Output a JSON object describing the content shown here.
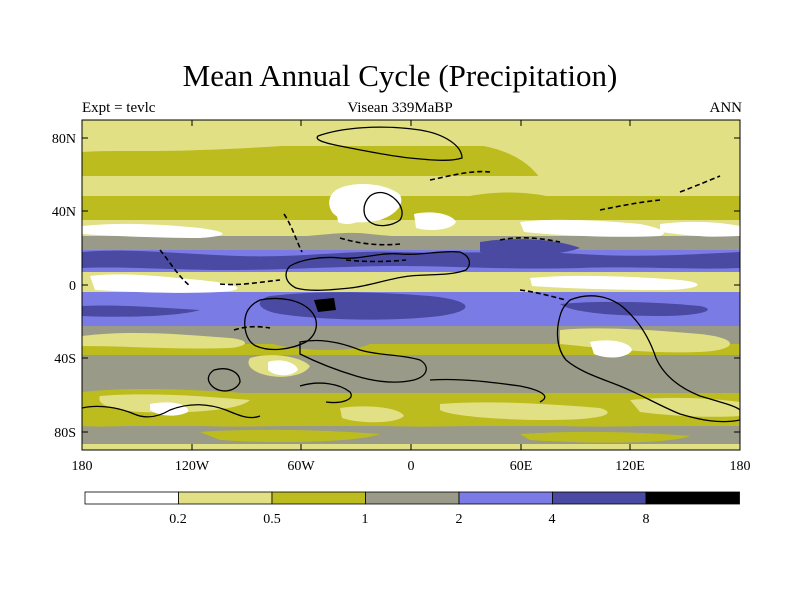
{
  "title": "Mean Annual Cycle (Precipitation)",
  "subtitle_left": "Expt = tevlc",
  "subtitle_center": "Visean 339MaBP",
  "subtitle_right": "ANN",
  "map": {
    "y_ticks": [
      "80N",
      "40N",
      "0",
      "40S",
      "80S"
    ],
    "x_ticks": [
      "180",
      "120W",
      "60W",
      "0",
      "60E",
      "120E",
      "180"
    ]
  },
  "legend": {
    "colors": [
      "#ffffff",
      "#e1e084",
      "#bdbc1e",
      "#9a9a88",
      "#7b7be6",
      "#4a4aa2",
      "#000000"
    ],
    "labels": [
      "0.2",
      "0.5",
      "1",
      "2",
      "4",
      "8"
    ]
  }
}
